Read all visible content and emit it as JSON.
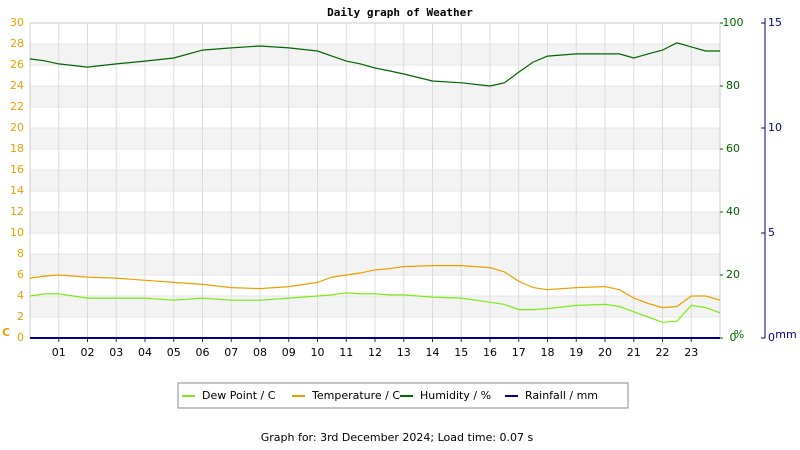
{
  "chart_data": {
    "type": "line",
    "title": "Daily graph of Weather",
    "footer": "Graph for: 3rd December 2024; Load time: 0.07 s",
    "ylabel": "C",
    "y2label": "%",
    "y3label": "mm",
    "x": [
      0,
      0.5,
      1,
      2,
      3,
      4,
      5,
      6,
      7,
      8,
      9,
      10,
      10.5,
      11,
      11.5,
      12,
      12.5,
      13,
      14,
      15,
      16,
      16.5,
      17,
      17.5,
      18,
      19,
      20,
      20.5,
      21,
      21.5,
      22,
      22.5,
      23,
      23.5,
      24
    ],
    "xlim": [
      0,
      24
    ],
    "xticks": [
      {
        "value": 1,
        "label": "01"
      },
      {
        "value": 2,
        "label": "02"
      },
      {
        "value": 3,
        "label": "03"
      },
      {
        "value": 4,
        "label": "04"
      },
      {
        "value": 5,
        "label": "05"
      },
      {
        "value": 6,
        "label": "06"
      },
      {
        "value": 7,
        "label": "07"
      },
      {
        "value": 8,
        "label": "08"
      },
      {
        "value": 9,
        "label": "09"
      },
      {
        "value": 10,
        "label": "10"
      },
      {
        "value": 11,
        "label": "11"
      },
      {
        "value": 12,
        "label": "12"
      },
      {
        "value": 13,
        "label": "13"
      },
      {
        "value": 14,
        "label": "14"
      },
      {
        "value": 15,
        "label": "15"
      },
      {
        "value": 16,
        "label": "16"
      },
      {
        "value": 17,
        "label": "17"
      },
      {
        "value": 18,
        "label": "18"
      },
      {
        "value": 19,
        "label": "19"
      },
      {
        "value": 20,
        "label": "20"
      },
      {
        "value": 21,
        "label": "21"
      },
      {
        "value": 22,
        "label": "22"
      },
      {
        "value": 23,
        "label": "23"
      }
    ],
    "ylim": [
      0,
      30
    ],
    "yticks": [
      0,
      2,
      4,
      6,
      8,
      10,
      12,
      14,
      16,
      18,
      20,
      22,
      24,
      26,
      28,
      30
    ],
    "y2lim": [
      0,
      100
    ],
    "y2ticks": [
      0,
      20,
      40,
      60,
      80,
      100
    ],
    "y3lim": [
      0,
      15
    ],
    "y3ticks": [
      0,
      5,
      10,
      15
    ],
    "grid": true,
    "series": [
      {
        "name": "Dew Point / C",
        "color": "#7ee81a",
        "values": [
          4.0,
          4.2,
          4.2,
          3.8,
          3.8,
          3.8,
          3.6,
          3.8,
          3.6,
          3.6,
          3.8,
          4.0,
          4.1,
          4.3,
          4.2,
          4.2,
          4.1,
          4.1,
          3.9,
          3.8,
          3.4,
          3.2,
          2.7,
          2.7,
          2.8,
          3.1,
          3.2,
          3.0,
          2.5,
          2.0,
          1.5,
          1.6,
          3.1,
          2.9,
          2.4
        ]
      },
      {
        "name": "Temperature / C",
        "color": "#e8a000",
        "values": [
          5.7,
          5.9,
          6.0,
          5.8,
          5.7,
          5.5,
          5.3,
          5.1,
          4.8,
          4.7,
          4.9,
          5.3,
          5.8,
          6.0,
          6.2,
          6.5,
          6.6,
          6.8,
          6.9,
          6.9,
          6.7,
          6.3,
          5.4,
          4.8,
          4.6,
          4.8,
          4.9,
          4.6,
          3.8,
          3.3,
          2.9,
          3.0,
          4.0,
          4.0,
          3.6
        ]
      },
      {
        "name": "Humidity / %",
        "color": "#006400",
        "axis": "y2",
        "values": [
          88.6,
          88.0,
          87.0,
          86.0,
          87.0,
          87.9,
          88.9,
          91.4,
          92.1,
          92.7,
          92.1,
          91.1,
          89.5,
          87.9,
          87.0,
          85.7,
          84.8,
          83.8,
          81.6,
          81.0,
          80.0,
          81.0,
          84.4,
          87.6,
          89.5,
          90.2,
          90.2,
          90.2,
          88.9,
          90.2,
          91.4,
          93.7,
          92.4,
          91.1,
          91.1
        ]
      },
      {
        "name": "Rainfall / mm",
        "color": "#00008b",
        "axis": "y3",
        "values": [
          0,
          0,
          0,
          0,
          0,
          0,
          0,
          0,
          0,
          0,
          0,
          0,
          0,
          0,
          0,
          0,
          0,
          0,
          0,
          0,
          0,
          0,
          0,
          0,
          0,
          0,
          0,
          0,
          0,
          0,
          0,
          0,
          0,
          0,
          0
        ]
      }
    ]
  }
}
